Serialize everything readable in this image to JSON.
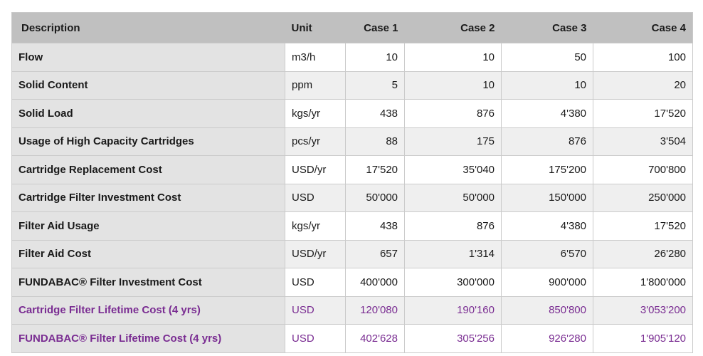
{
  "table": {
    "columns": [
      {
        "label": "Description",
        "align": "left"
      },
      {
        "label": "Unit",
        "align": "left"
      },
      {
        "label": "Case 1",
        "align": "right"
      },
      {
        "label": "Case 2",
        "align": "right"
      },
      {
        "label": "Case 3",
        "align": "right"
      },
      {
        "label": "Case 4",
        "align": "right"
      }
    ],
    "rows": [
      {
        "description": "Flow",
        "unit": "m3/h",
        "values": [
          "10",
          "10",
          "50",
          "100"
        ],
        "highlight": false
      },
      {
        "description": "Solid Content",
        "unit": "ppm",
        "values": [
          "5",
          "10",
          "10",
          "20"
        ],
        "highlight": false
      },
      {
        "description": "Solid Load",
        "unit": "kgs/yr",
        "values": [
          "438",
          "876",
          "4'380",
          "17'520"
        ],
        "highlight": false
      },
      {
        "description": "Usage of High Capacity Cartridges",
        "unit": "pcs/yr",
        "values": [
          "88",
          "175",
          "876",
          "3'504"
        ],
        "highlight": false
      },
      {
        "description": "Cartridge Replacement Cost",
        "unit": "USD/yr",
        "values": [
          "17'520",
          "35'040",
          "175'200",
          "700'800"
        ],
        "highlight": false
      },
      {
        "description": "Cartridge Filter Investment Cost",
        "unit": "USD",
        "values": [
          "50'000",
          "50'000",
          "150'000",
          "250'000"
        ],
        "highlight": false
      },
      {
        "description": "Filter Aid Usage",
        "unit": "kgs/yr",
        "values": [
          "438",
          "876",
          "4'380",
          "17'520"
        ],
        "highlight": false
      },
      {
        "description": "Filter Aid Cost",
        "unit": "USD/yr",
        "values": [
          "657",
          "1'314",
          "6'570",
          "26'280"
        ],
        "highlight": false
      },
      {
        "description": "FUNDABAC® Filter Investment Cost",
        "unit": "USD",
        "values": [
          "400'000",
          "300'000",
          "900'000",
          "1'800'000"
        ],
        "highlight": false
      },
      {
        "description": "Cartridge Filter Lifetime Cost (4 yrs)",
        "unit": "USD",
        "values": [
          "120'080",
          "190'160",
          "850'800",
          "3'053'200"
        ],
        "highlight": true
      },
      {
        "description": "FUNDABAC® Filter Lifetime Cost (4 yrs)",
        "unit": "USD",
        "values": [
          "402'628",
          "305'256",
          "926'280",
          "1'905'120"
        ],
        "highlight": true
      }
    ]
  },
  "colors": {
    "header_bg": "#c0c0c0",
    "description_bg": "#e3e3e3",
    "row_alt_bg": "#efefef",
    "row_bg": "#ffffff",
    "highlight_text": "#7a2d92",
    "border": "#cbcbcb"
  }
}
